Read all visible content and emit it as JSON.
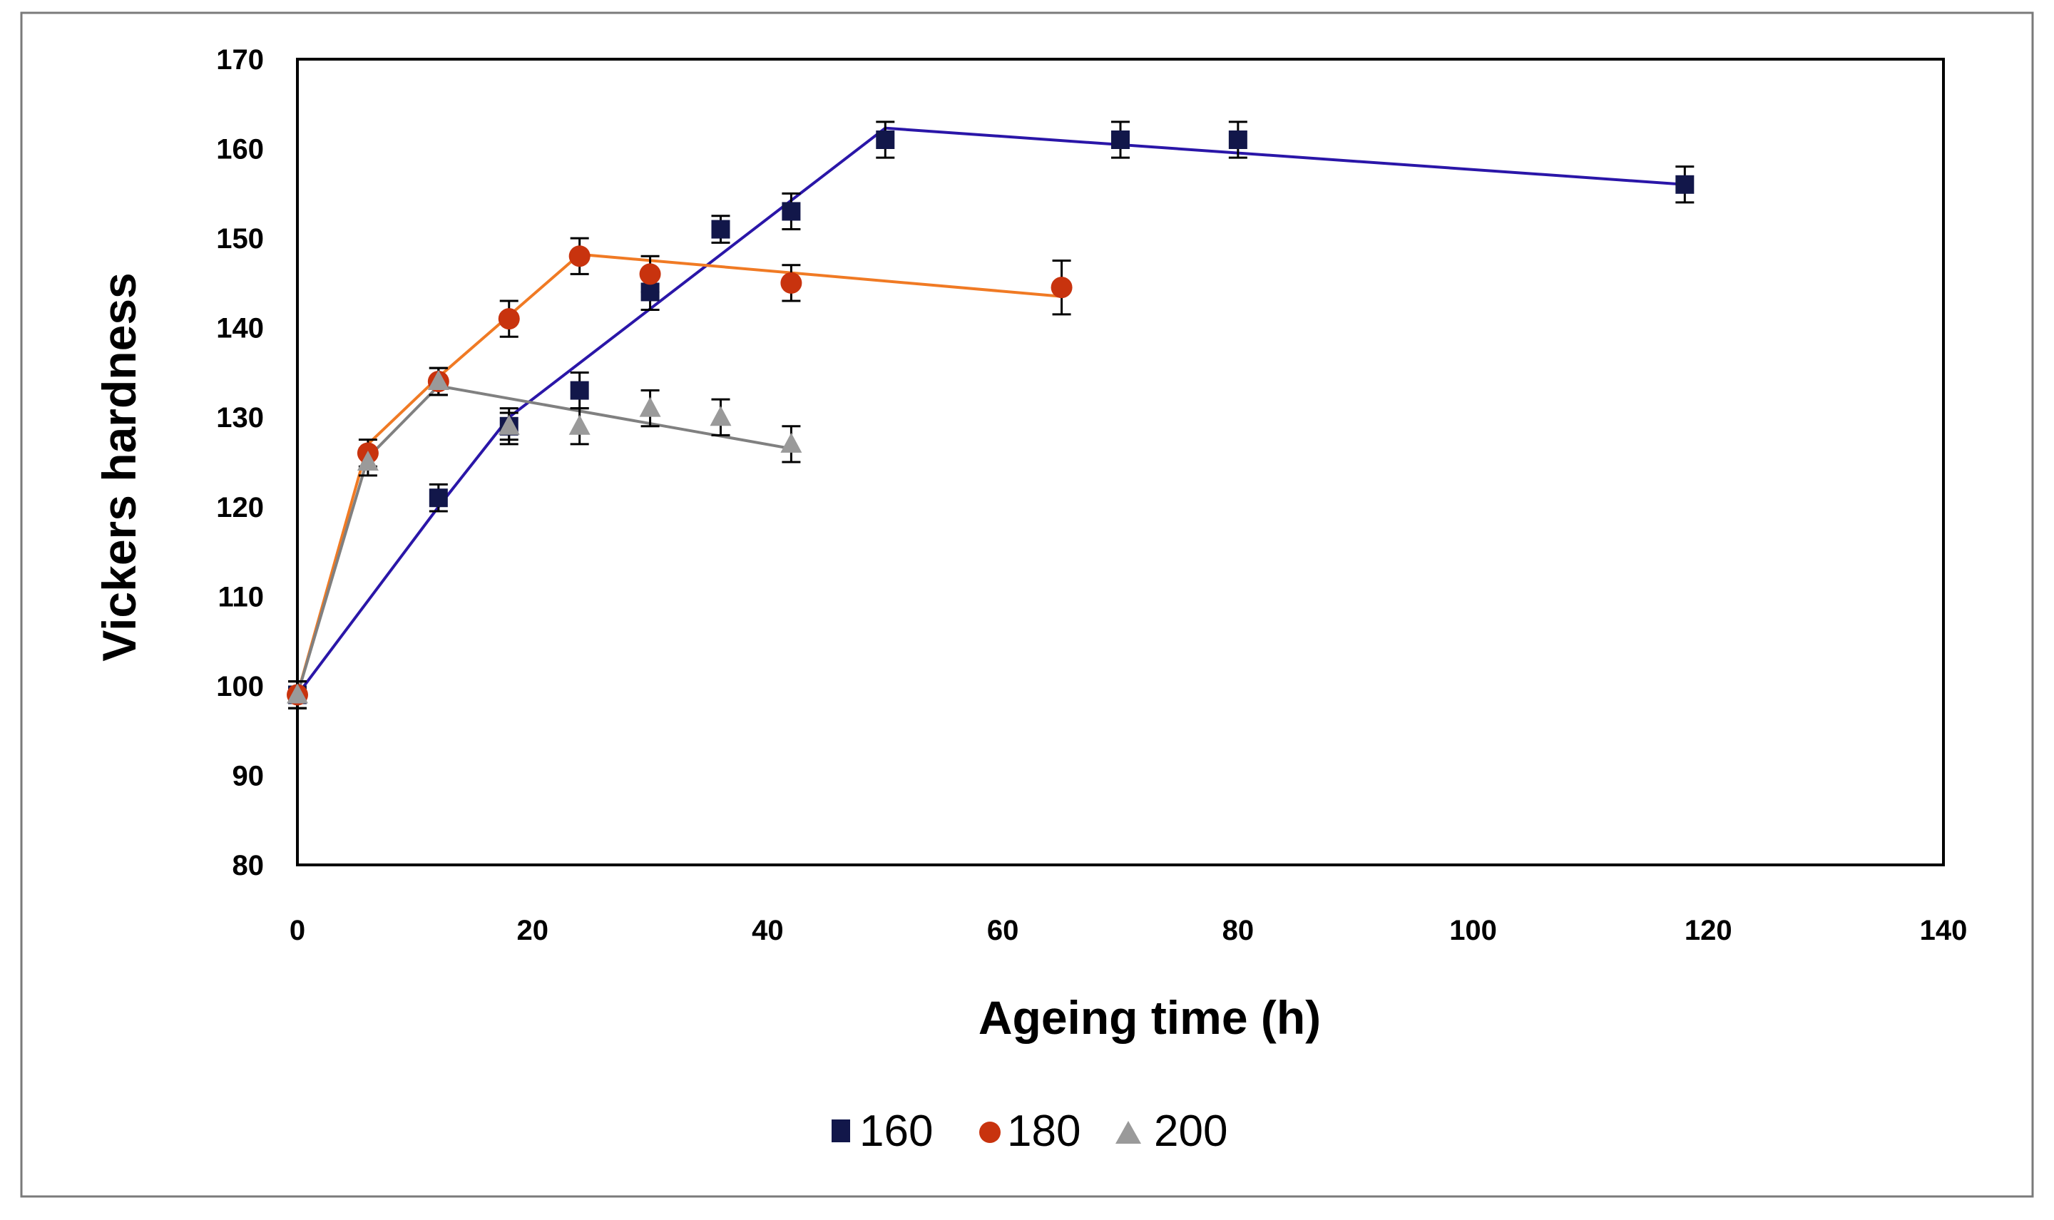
{
  "chart_data": {
    "type": "scatter",
    "title": "",
    "xlabel": "Ageing time (h)",
    "ylabel": "Vickers hardness",
    "xlim": [
      0,
      140
    ],
    "ylim": [
      80,
      170
    ],
    "xticks": [
      0,
      20,
      40,
      60,
      80,
      100,
      120,
      140
    ],
    "yticks": [
      80,
      90,
      100,
      110,
      120,
      130,
      140,
      150,
      160,
      170
    ],
    "grid": false,
    "legend_position": "bottom-center",
    "series": [
      {
        "name": "160",
        "marker": "square",
        "color": "#12174a",
        "line_color": "#2a16a8",
        "points": [
          {
            "x": 0,
            "y": 99,
            "err": 1.5
          },
          {
            "x": 12,
            "y": 121,
            "err": 1.5
          },
          {
            "x": 18,
            "y": 129,
            "err": 1.5
          },
          {
            "x": 24,
            "y": 133,
            "err": 2
          },
          {
            "x": 30,
            "y": 144,
            "err": 2
          },
          {
            "x": 36,
            "y": 151,
            "err": 1.5
          },
          {
            "x": 42,
            "y": 153,
            "err": 2
          },
          {
            "x": 50,
            "y": 161,
            "err": 2
          },
          {
            "x": 70,
            "y": 161,
            "err": 2
          },
          {
            "x": 80,
            "y": 161,
            "err": 2
          },
          {
            "x": 118,
            "y": 156,
            "err": 2
          }
        ],
        "trend": [
          {
            "x": 0,
            "y": 99
          },
          {
            "x": 12,
            "y": 120
          },
          {
            "x": 18,
            "y": 130
          },
          {
            "x": 50,
            "y": 162.3
          },
          {
            "x": 118,
            "y": 156
          }
        ]
      },
      {
        "name": "180",
        "marker": "circle",
        "color": "#c8330e",
        "line_color": "#f07a24",
        "points": [
          {
            "x": 0,
            "y": 99,
            "err": 1.5
          },
          {
            "x": 6,
            "y": 126,
            "err": 1.5
          },
          {
            "x": 12,
            "y": 134,
            "err": 1.5
          },
          {
            "x": 18,
            "y": 141,
            "err": 2
          },
          {
            "x": 24,
            "y": 148,
            "err": 2
          },
          {
            "x": 30,
            "y": 146,
            "err": 2
          },
          {
            "x": 42,
            "y": 145,
            "err": 2
          },
          {
            "x": 65,
            "y": 144.5,
            "err": 3
          }
        ],
        "trend": [
          {
            "x": 0,
            "y": 99
          },
          {
            "x": 6,
            "y": 127
          },
          {
            "x": 12,
            "y": 134.5
          },
          {
            "x": 24,
            "y": 148.2
          },
          {
            "x": 65,
            "y": 143.5
          }
        ]
      },
      {
        "name": "200",
        "marker": "triangle",
        "color": "#9a9a9a",
        "line_color": "#808080",
        "points": [
          {
            "x": 0,
            "y": 99,
            "err": 1.5
          },
          {
            "x": 6,
            "y": 125,
            "err": 1.5
          },
          {
            "x": 12,
            "y": 134,
            "err": 1.5
          },
          {
            "x": 18,
            "y": 129,
            "err": 2
          },
          {
            "x": 24,
            "y": 129,
            "err": 2
          },
          {
            "x": 30,
            "y": 131,
            "err": 2
          },
          {
            "x": 36,
            "y": 130,
            "err": 2
          },
          {
            "x": 42,
            "y": 127,
            "err": 2
          }
        ],
        "trend": [
          {
            "x": 0,
            "y": 99
          },
          {
            "x": 6,
            "y": 125.5
          },
          {
            "x": 12,
            "y": 133.5
          },
          {
            "x": 42,
            "y": 126.5
          }
        ]
      }
    ]
  }
}
